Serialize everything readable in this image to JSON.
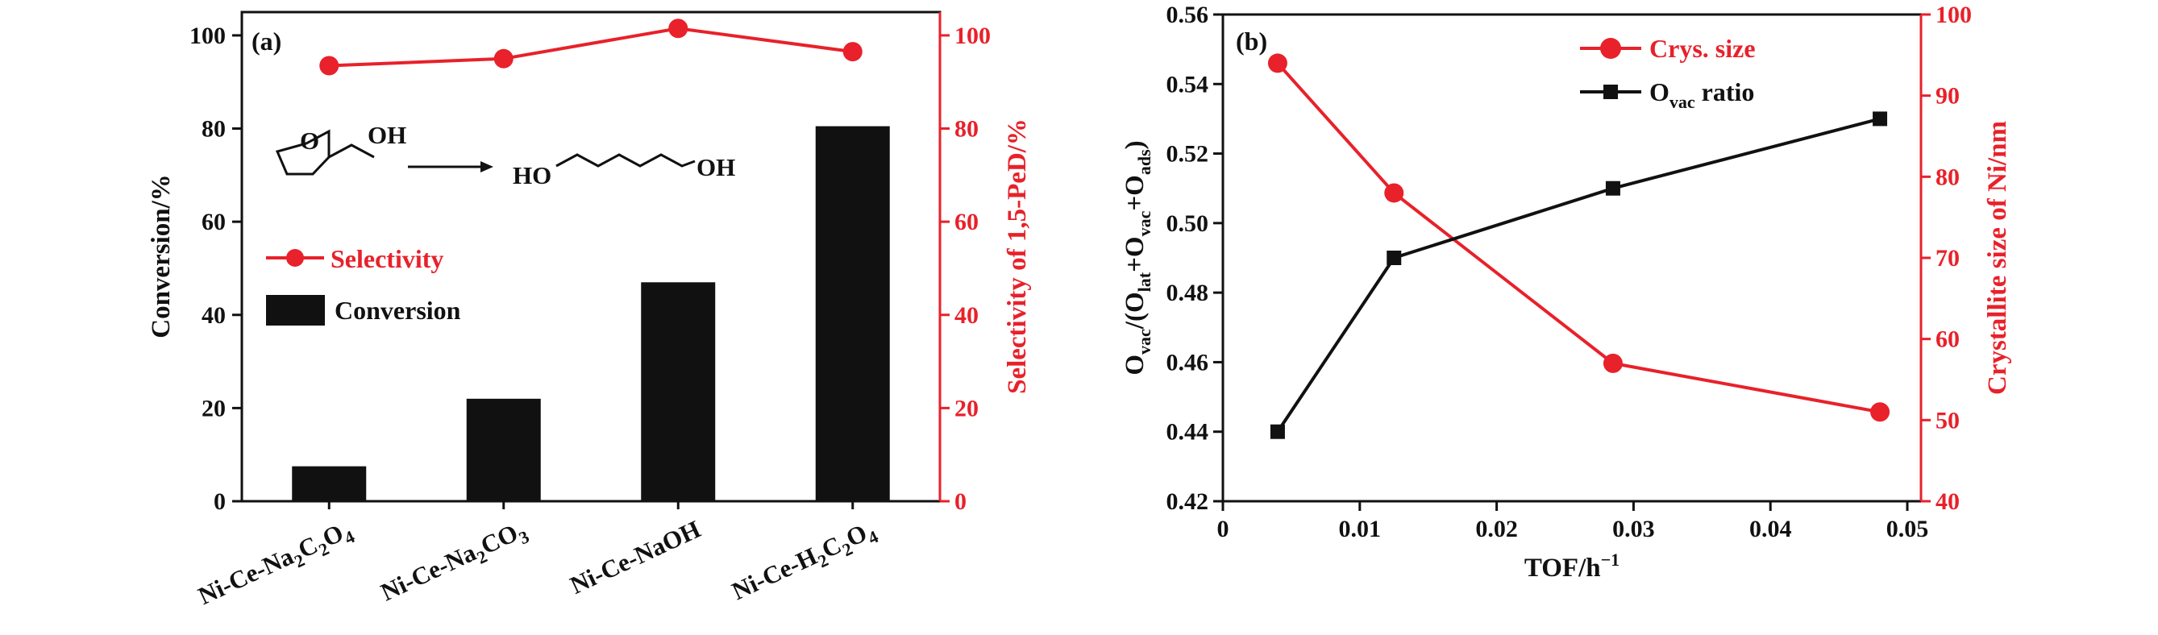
{
  "colors": {
    "red": "#e8212a",
    "black": "#111111"
  },
  "chart_data": [
    {
      "panel": "(a)",
      "type": "bar",
      "categories": [
        [
          "Ni-Ce-Na",
          "2",
          "C",
          "2",
          "O",
          "4",
          ""
        ],
        [
          "Ni-Ce-Na",
          "2",
          "CO",
          "3",
          "",
          "",
          ""
        ],
        [
          "Ni-Ce-NaOH",
          "",
          "",
          "",
          "",
          "",
          ""
        ],
        [
          "Ni-Ce-H",
          "2",
          "C",
          "2",
          "O",
          "4",
          ""
        ]
      ],
      "category_labels": [
        "Ni-Ce-Na2C2O4",
        "Ni-Ce-Na2CO3",
        "Ni-Ce-NaOH",
        "Ni-Ce-H2C2O4"
      ],
      "series": [
        {
          "name": "Conversion",
          "kind": "bar",
          "axis": "left",
          "color": "#111111",
          "values": [
            7.5,
            22,
            47,
            80.5
          ]
        },
        {
          "name": "Selectivity",
          "kind": "line",
          "axis": "right",
          "color": "#e8212a",
          "values": [
            93.5,
            95,
            101.5,
            96.5
          ]
        }
      ],
      "ylabel": "Conversion/%",
      "y2label": "Selectivity of 1,5-PeD/%",
      "ylim": [
        0,
        105
      ],
      "y2lim": [
        0,
        105
      ],
      "yticks": [
        "0",
        "20",
        "40",
        "60",
        "80",
        "100"
      ],
      "y2ticks": [
        "0",
        "20",
        "40",
        "60",
        "80",
        "100"
      ],
      "legend": [
        "Selectivity",
        "Conversion"
      ],
      "scheme": {
        "reactant_label": "OH",
        "reactant_ring_atom": "O",
        "product_left": "HO",
        "product_right": "OH"
      }
    },
    {
      "panel": "(b)",
      "type": "line",
      "x": [
        0.004,
        0.0125,
        0.0285,
        0.048
      ],
      "xlim": [
        0,
        0.051
      ],
      "xticks": [
        "0",
        "0.01",
        "0.02",
        "0.03",
        "0.04",
        "0.05"
      ],
      "xlabel_base": "TOF/h",
      "xlabel_sup": "−1",
      "series": [
        {
          "name": "Ovac ratio",
          "axis": "left",
          "color": "#111111",
          "marker": "square",
          "values": [
            0.44,
            0.49,
            0.51,
            0.53
          ]
        },
        {
          "name": "Crys. size",
          "axis": "right",
          "color": "#e8212a",
          "marker": "circle",
          "values": [
            94,
            78,
            57,
            51
          ]
        }
      ],
      "ylabel_parts": [
        "O",
        "vac",
        "/(O",
        "lat",
        "+O",
        "vac",
        "+O",
        "ads",
        ")"
      ],
      "y2label": "Crystallite size of Ni/nm",
      "ylim": [
        0.42,
        0.56
      ],
      "y2lim": [
        40,
        100
      ],
      "yticks": [
        "0.42",
        "0.44",
        "0.46",
        "0.48",
        "0.50",
        "0.52",
        "0.54",
        "0.56"
      ],
      "y2ticks": [
        "40",
        "50",
        "60",
        "70",
        "80",
        "90",
        "100"
      ],
      "legend": {
        "crys": "Crys. size",
        "ovac_base": "O",
        "ovac_sub": "vac",
        "ovac_rest": " ratio"
      }
    }
  ]
}
